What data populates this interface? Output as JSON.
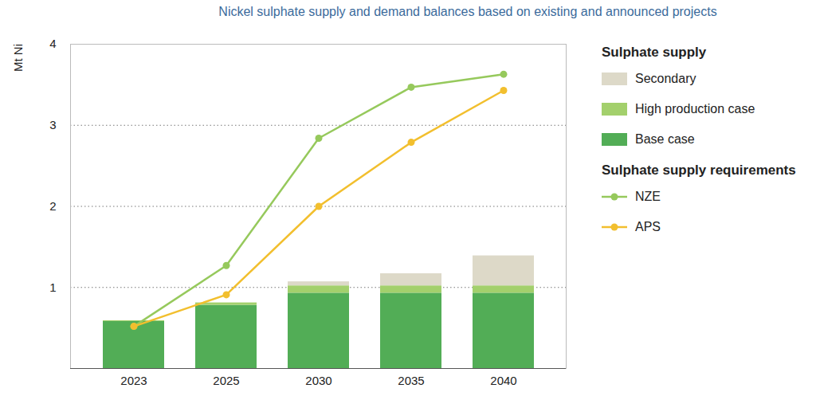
{
  "chart_data": {
    "type": "bar",
    "title": "Nickel sulphate supply and demand balances based on existing and announced projects",
    "y_label": "Mt Ni",
    "categories": [
      "2023",
      "2025",
      "2030",
      "2035",
      "2040"
    ],
    "series": [
      {
        "name": "Base case",
        "type": "bar",
        "color": "#52ad56",
        "values": [
          0.58,
          0.78,
          0.93,
          0.93,
          0.93
        ]
      },
      {
        "name": "High production case",
        "type": "bar",
        "color": "#a3d06c",
        "values": [
          0.01,
          0.03,
          0.09,
          0.09,
          0.09
        ]
      },
      {
        "name": "Secondary",
        "type": "bar",
        "color": "#ddd9c8",
        "values": [
          0,
          0,
          0.05,
          0.15,
          0.37
        ]
      },
      {
        "name": "NZE",
        "type": "line",
        "color": "#96c95c",
        "marker": "circle",
        "line_style": "solid",
        "values": [
          0.52,
          1.27,
          2.84,
          3.47,
          3.63
        ]
      },
      {
        "name": "APS",
        "type": "line",
        "color": "#f2bf2e",
        "marker": "circle",
        "line_style": "solid",
        "values": [
          0.52,
          0.91,
          2.0,
          2.79,
          3.43
        ]
      }
    ],
    "stacked": true,
    "ylim": [
      0,
      4
    ],
    "yticks": [
      1,
      2,
      3,
      4
    ],
    "grid": true,
    "legend": "right",
    "legend_groups": [
      {
        "title": "Sulphate supply",
        "type": "bar"
      },
      {
        "title": "Sulphate supply requirements",
        "type": "line"
      }
    ]
  }
}
